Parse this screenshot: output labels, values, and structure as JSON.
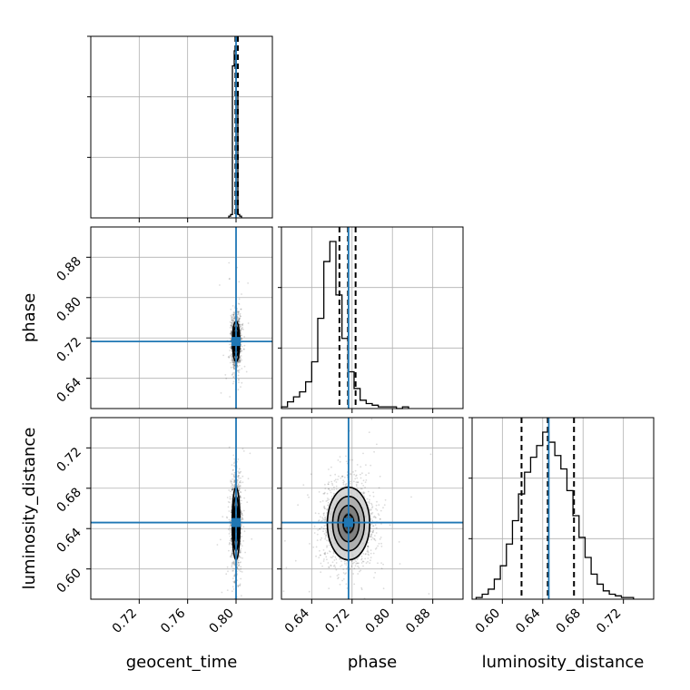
{
  "chart_data": {
    "type": "corner",
    "parameters": [
      "geocent_time",
      "phase",
      "luminosity_distance"
    ],
    "labels": {
      "geocent_time": "geocent_time",
      "phase": "phase",
      "luminosity_distance": "luminosity_distance"
    },
    "ranges": {
      "geocent_time": [
        0.68,
        0.83
      ],
      "phase": [
        0.58,
        0.94
      ],
      "luminosity_distance": [
        0.57,
        0.75
      ]
    },
    "ticks": {
      "geocent_time": [
        "0.72",
        "0.76",
        "0.80"
      ],
      "phase": [
        "0.64",
        "0.72",
        "0.80",
        "0.88"
      ],
      "luminosity_distance": [
        "0.60",
        "0.64",
        "0.68",
        "0.72"
      ]
    },
    "truths": {
      "geocent_time": 0.8,
      "phase": 0.713,
      "luminosity_distance": 0.646
    },
    "quantiles": {
      "geocent_time": [
        0.7995,
        0.8,
        0.8015
      ],
      "phase": [
        0.695,
        0.712,
        0.727
      ],
      "luminosity_distance": [
        0.619,
        0.645,
        0.671
      ]
    },
    "histograms": {
      "geocent_time": {
        "bin_edges": [
          0.794,
          0.7955,
          0.797,
          0.7985,
          0.8,
          0.8015,
          0.803,
          0.8045
        ],
        "counts": [
          0.01,
          0.02,
          0.91,
          1.0,
          0.75,
          0.02,
          0.01
        ]
      },
      "phase": {
        "bin_edges": [
          0.58,
          0.592,
          0.604,
          0.616,
          0.628,
          0.64,
          0.652,
          0.664,
          0.676,
          0.688,
          0.7,
          0.712,
          0.724,
          0.736,
          0.748,
          0.76,
          0.772,
          0.784,
          0.796,
          0.808,
          0.82,
          0.832
        ],
        "counts": [
          0.01,
          0.04,
          0.07,
          0.1,
          0.16,
          0.28,
          0.54,
          0.88,
          1.0,
          0.68,
          0.42,
          0.22,
          0.12,
          0.05,
          0.03,
          0.02,
          0.01,
          0.01,
          0.01,
          0.0,
          0.01
        ]
      },
      "luminosity_distance": {
        "bin_edges": [
          0.574,
          0.58,
          0.586,
          0.592,
          0.598,
          0.604,
          0.61,
          0.616,
          0.622,
          0.628,
          0.634,
          0.64,
          0.646,
          0.652,
          0.658,
          0.664,
          0.67,
          0.676,
          0.682,
          0.688,
          0.694,
          0.7,
          0.706,
          0.712,
          0.718,
          0.724,
          0.73
        ],
        "counts": [
          0.01,
          0.03,
          0.06,
          0.12,
          0.2,
          0.33,
          0.47,
          0.63,
          0.76,
          0.85,
          0.92,
          1.0,
          0.94,
          0.86,
          0.78,
          0.65,
          0.5,
          0.37,
          0.25,
          0.15,
          0.09,
          0.05,
          0.03,
          0.02,
          0.01,
          0.01
        ]
      }
    },
    "bivariate": {
      "phase_vs_geocent_time": {
        "center": [
          0.8,
          0.713
        ],
        "sigma": [
          0.0015,
          0.02
        ],
        "contour_sigmas": [
          0.5,
          1.0,
          1.5,
          2.0
        ]
      },
      "luminosity_distance_vs_geocent_time": {
        "center": [
          0.8,
          0.645
        ],
        "sigma": [
          0.0016,
          0.018
        ],
        "contour_sigmas": [
          0.5,
          1.0,
          1.5,
          2.0
        ]
      },
      "luminosity_distance_vs_phase": {
        "center": [
          0.713,
          0.645
        ],
        "sigma": [
          0.021,
          0.018
        ],
        "contour_sigmas": [
          0.5,
          1.0,
          1.5,
          2.0
        ]
      }
    },
    "grid": true
  }
}
